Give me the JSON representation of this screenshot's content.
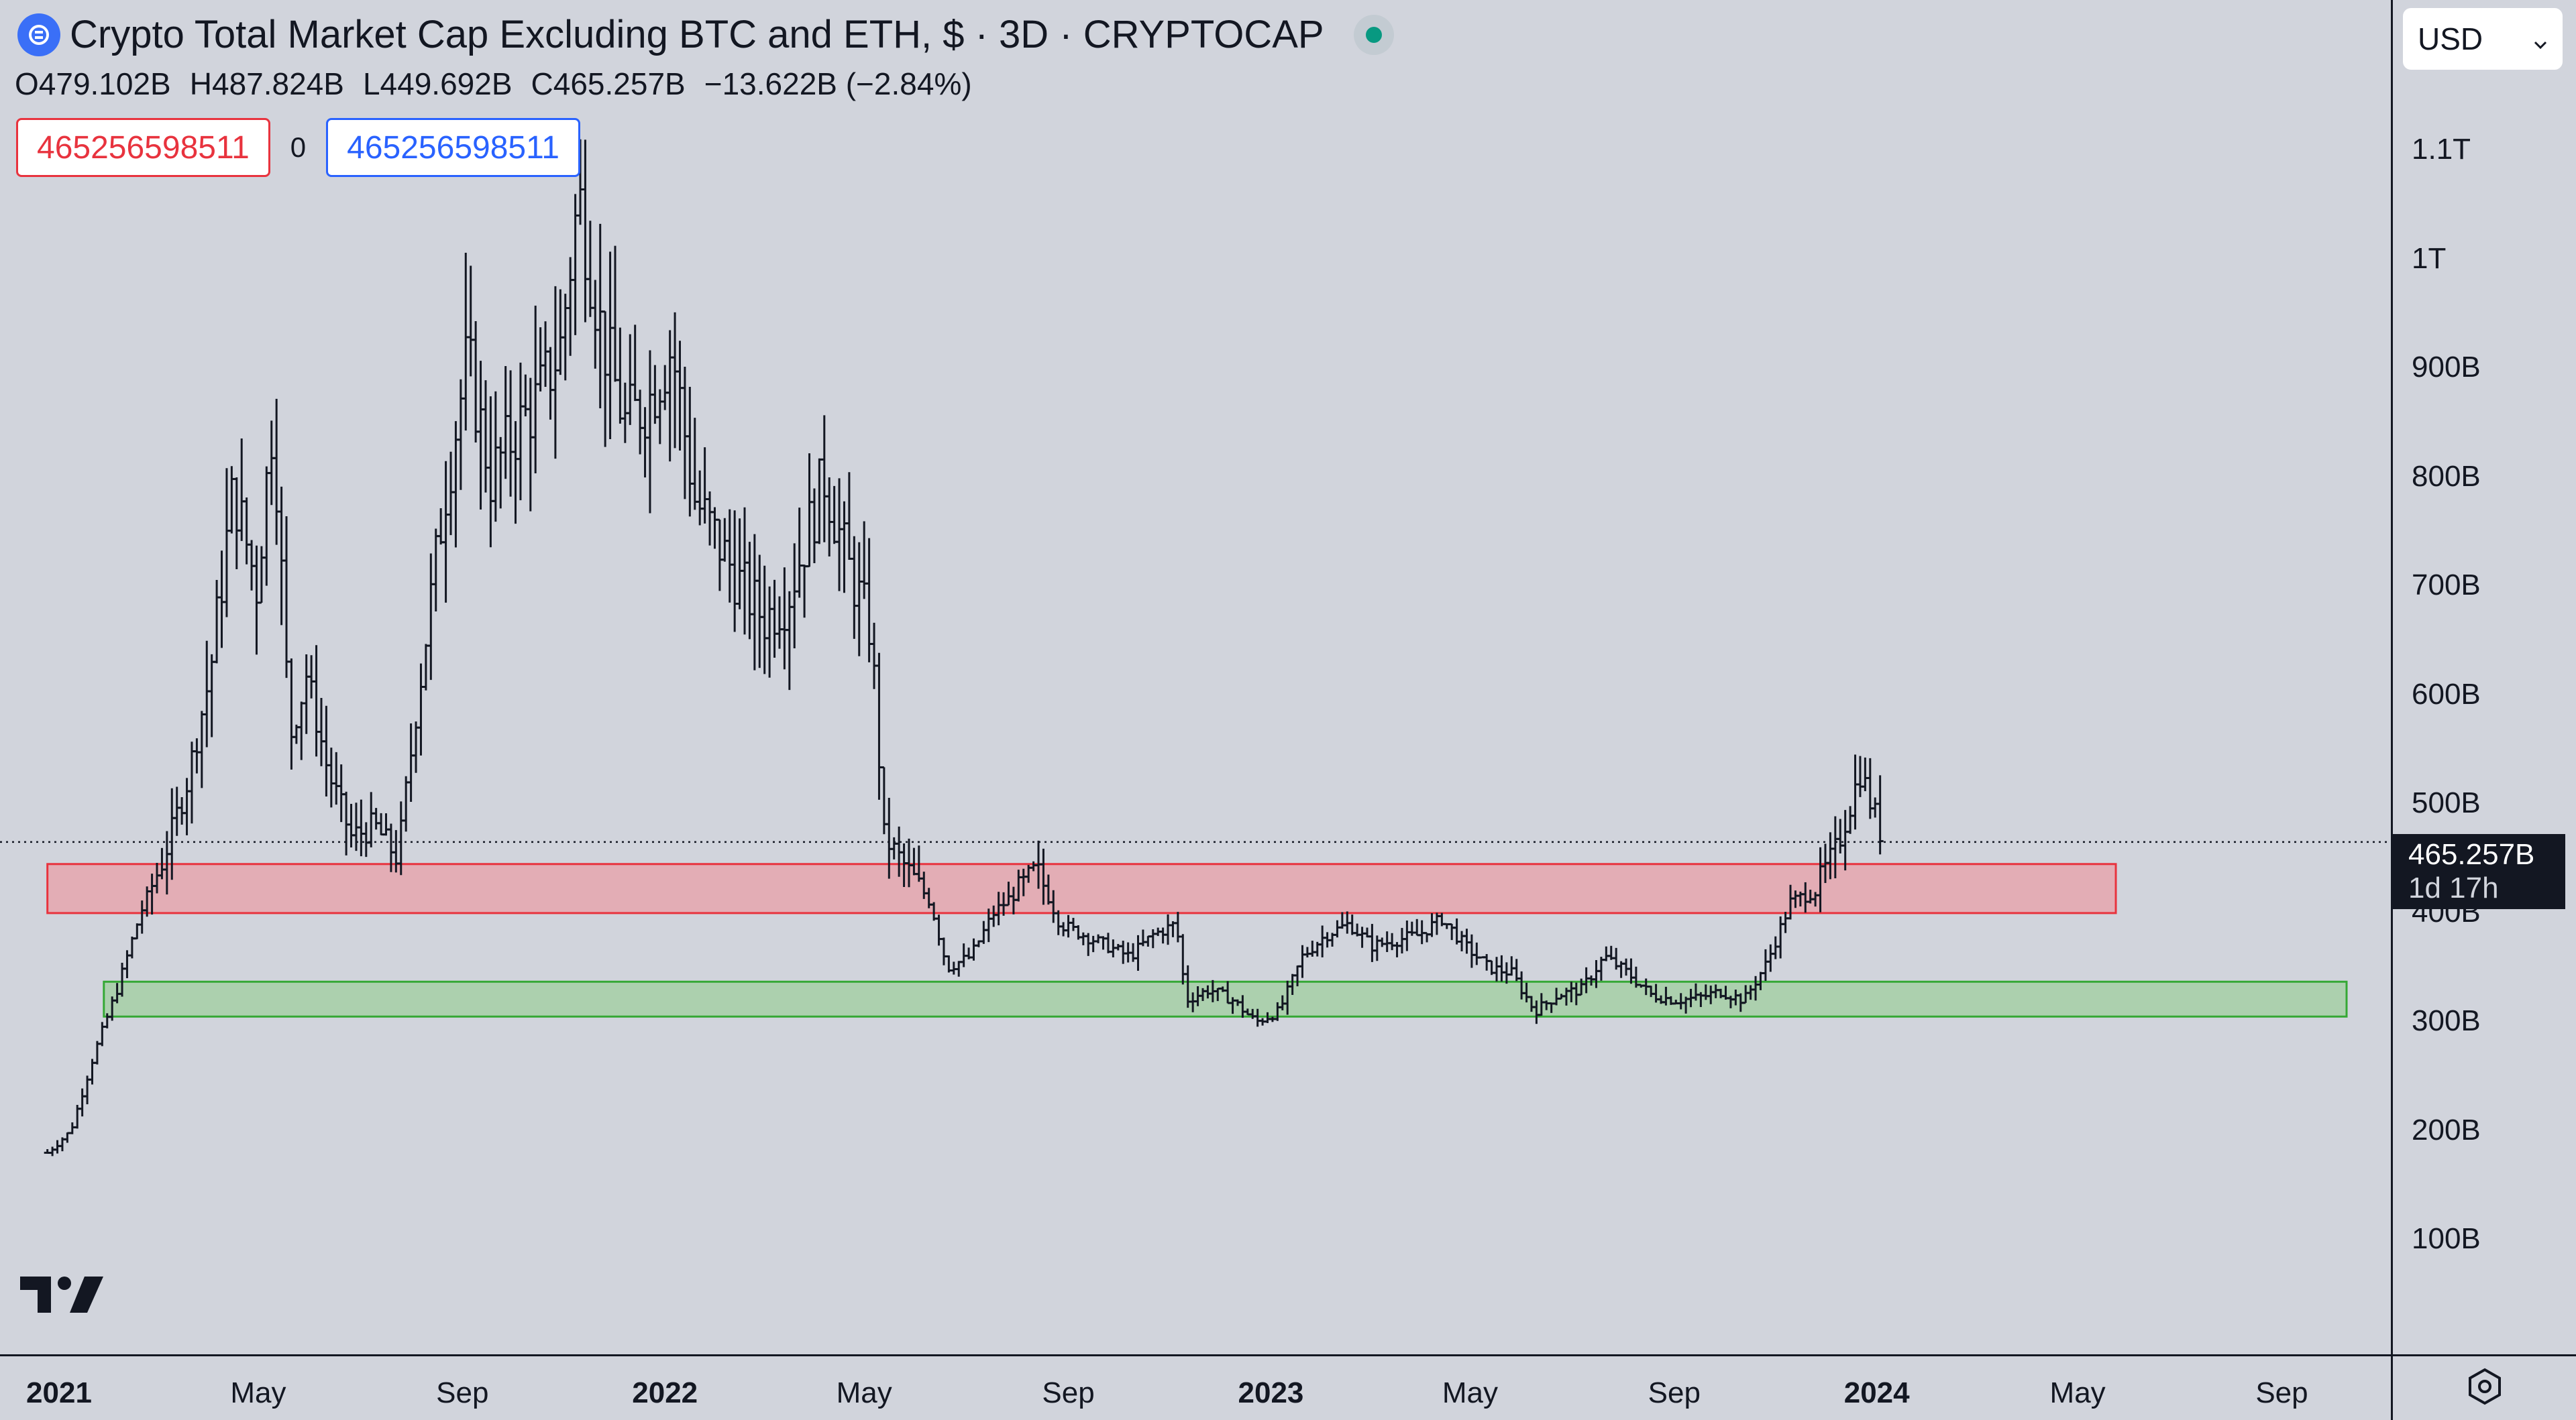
{
  "legend": {
    "title": "Crypto Total Market Cap Excluding BTC and ETH, $ · 3D · CRYPTOCAP",
    "open_label": "O",
    "open": "479.102B",
    "high_label": "H",
    "high": "487.824B",
    "low_label": "L",
    "low": "449.692B",
    "close_label": "C",
    "close": "465.257B",
    "change": "−13.622B (−2.84%)"
  },
  "trade": {
    "sell_value": "465256598511",
    "spread": "0",
    "buy_value": "465256598511"
  },
  "currency": {
    "selected": "USD"
  },
  "last_price": {
    "value": "465.257B",
    "countdown": "1d 17h"
  },
  "colors": {
    "background": "#d1d4dc",
    "bars": "#131722",
    "resistance_zone_fill": "#e8a0a8",
    "resistance_zone_border": "#e8333e",
    "support_zone_fill": "#9fcf9f",
    "support_zone_border": "#35a835",
    "sell": "#e8333e",
    "buy": "#2962ff",
    "live": "#089981"
  },
  "chart_data": {
    "type": "ohlc_bar",
    "timeframe": "3D",
    "y_unit": "USD",
    "ylim": [
      0,
      1250000000000
    ],
    "y_ticks": [
      {
        "value": 100000000000,
        "label": "100B"
      },
      {
        "value": 200000000000,
        "label": "200B"
      },
      {
        "value": 300000000000,
        "label": "300B"
      },
      {
        "value": 400000000000,
        "label": "400B"
      },
      {
        "value": 500000000000,
        "label": "500B"
      },
      {
        "value": 600000000000,
        "label": "600B"
      },
      {
        "value": 700000000000,
        "label": "700B"
      },
      {
        "value": 800000000000,
        "label": "800B"
      },
      {
        "value": 900000000000,
        "label": "900B"
      },
      {
        "value": 1000000000000,
        "label": "1T"
      },
      {
        "value": 1100000000000,
        "label": "1.1T"
      }
    ],
    "x_range": [
      "2021-01-01",
      "2024-10-10"
    ],
    "x_ticks": [
      {
        "date": "2021-01-01",
        "label": "2021",
        "year": true
      },
      {
        "date": "2021-05-01",
        "label": "May",
        "year": false
      },
      {
        "date": "2021-09-01",
        "label": "Sep",
        "year": false
      },
      {
        "date": "2022-01-01",
        "label": "2022",
        "year": true
      },
      {
        "date": "2022-05-01",
        "label": "May",
        "year": false
      },
      {
        "date": "2022-09-01",
        "label": "Sep",
        "year": false
      },
      {
        "date": "2023-01-01",
        "label": "2023",
        "year": true
      },
      {
        "date": "2023-05-01",
        "label": "May",
        "year": false
      },
      {
        "date": "2023-09-01",
        "label": "Sep",
        "year": false
      },
      {
        "date": "2024-01-01",
        "label": "2024",
        "year": true
      },
      {
        "date": "2024-05-01",
        "label": "May",
        "year": false
      },
      {
        "date": "2024-09-01",
        "label": "Sep",
        "year": false
      }
    ],
    "series": [
      {
        "date": "2020-12-25",
        "close": 180000000000
      },
      {
        "date": "2021-01-08",
        "close": 200000000000
      },
      {
        "date": "2021-01-22",
        "close": 270000000000
      },
      {
        "date": "2021-02-05",
        "close": 330000000000
      },
      {
        "date": "2021-02-19",
        "close": 400000000000
      },
      {
        "date": "2021-03-05",
        "close": 450000000000
      },
      {
        "date": "2021-03-19",
        "close": 520000000000
      },
      {
        "date": "2021-04-02",
        "close": 620000000000
      },
      {
        "date": "2021-04-16",
        "close": 790000000000
      },
      {
        "date": "2021-04-30",
        "close": 700000000000
      },
      {
        "date": "2021-05-10",
        "close": 860000000000
      },
      {
        "date": "2021-05-20",
        "close": 560000000000
      },
      {
        "date": "2021-05-30",
        "close": 620000000000
      },
      {
        "date": "2021-06-12",
        "close": 530000000000
      },
      {
        "date": "2021-06-26",
        "close": 470000000000
      },
      {
        "date": "2021-07-10",
        "close": 480000000000
      },
      {
        "date": "2021-07-24",
        "close": 450000000000
      },
      {
        "date": "2021-08-07",
        "close": 620000000000
      },
      {
        "date": "2021-08-21",
        "close": 780000000000
      },
      {
        "date": "2021-09-04",
        "close": 910000000000
      },
      {
        "date": "2021-09-18",
        "close": 800000000000
      },
      {
        "date": "2021-10-02",
        "close": 840000000000
      },
      {
        "date": "2021-10-16",
        "close": 870000000000
      },
      {
        "date": "2021-10-30",
        "close": 920000000000
      },
      {
        "date": "2021-11-10",
        "close": 1060000000000
      },
      {
        "date": "2021-11-24",
        "close": 930000000000
      },
      {
        "date": "2021-12-08",
        "close": 850000000000
      },
      {
        "date": "2021-12-22",
        "close": 870000000000
      },
      {
        "date": "2022-01-05",
        "close": 920000000000
      },
      {
        "date": "2022-01-19",
        "close": 780000000000
      },
      {
        "date": "2022-02-02",
        "close": 740000000000
      },
      {
        "date": "2022-02-16",
        "close": 700000000000
      },
      {
        "date": "2022-03-02",
        "close": 670000000000
      },
      {
        "date": "2022-03-16",
        "close": 690000000000
      },
      {
        "date": "2022-03-30",
        "close": 760000000000
      },
      {
        "date": "2022-04-07",
        "close": 800000000000
      },
      {
        "date": "2022-04-21",
        "close": 720000000000
      },
      {
        "date": "2022-05-05",
        "close": 660000000000
      },
      {
        "date": "2022-05-13",
        "close": 470000000000
      },
      {
        "date": "2022-05-27",
        "close": 440000000000
      },
      {
        "date": "2022-06-10",
        "close": 410000000000
      },
      {
        "date": "2022-06-20",
        "close": 350000000000
      },
      {
        "date": "2022-07-04",
        "close": 360000000000
      },
      {
        "date": "2022-07-18",
        "close": 400000000000
      },
      {
        "date": "2022-08-01",
        "close": 420000000000
      },
      {
        "date": "2022-08-13",
        "close": 440000000000
      },
      {
        "date": "2022-08-27",
        "close": 390000000000
      },
      {
        "date": "2022-09-10",
        "close": 380000000000
      },
      {
        "date": "2022-09-24",
        "close": 370000000000
      },
      {
        "date": "2022-10-08",
        "close": 360000000000
      },
      {
        "date": "2022-10-22",
        "close": 380000000000
      },
      {
        "date": "2022-11-05",
        "close": 390000000000
      },
      {
        "date": "2022-11-11",
        "close": 320000000000
      },
      {
        "date": "2022-11-25",
        "close": 330000000000
      },
      {
        "date": "2022-12-09",
        "close": 320000000000
      },
      {
        "date": "2022-12-23",
        "close": 300000000000
      },
      {
        "date": "2023-01-06",
        "close": 310000000000
      },
      {
        "date": "2023-01-20",
        "close": 360000000000
      },
      {
        "date": "2023-02-03",
        "close": 380000000000
      },
      {
        "date": "2023-02-17",
        "close": 390000000000
      },
      {
        "date": "2023-03-03",
        "close": 370000000000
      },
      {
        "date": "2023-03-17",
        "close": 375000000000
      },
      {
        "date": "2023-03-31",
        "close": 380000000000
      },
      {
        "date": "2023-04-14",
        "close": 395000000000
      },
      {
        "date": "2023-04-28",
        "close": 370000000000
      },
      {
        "date": "2023-05-12",
        "close": 350000000000
      },
      {
        "date": "2023-05-26",
        "close": 345000000000
      },
      {
        "date": "2023-06-09",
        "close": 310000000000
      },
      {
        "date": "2023-06-23",
        "close": 325000000000
      },
      {
        "date": "2023-07-07",
        "close": 330000000000
      },
      {
        "date": "2023-07-21",
        "close": 360000000000
      },
      {
        "date": "2023-08-04",
        "close": 345000000000
      },
      {
        "date": "2023-08-18",
        "close": 325000000000
      },
      {
        "date": "2023-09-01",
        "close": 320000000000
      },
      {
        "date": "2023-09-15",
        "close": 322000000000
      },
      {
        "date": "2023-09-29",
        "close": 328000000000
      },
      {
        "date": "2023-10-13",
        "close": 320000000000
      },
      {
        "date": "2023-10-27",
        "close": 355000000000
      },
      {
        "date": "2023-11-10",
        "close": 410000000000
      },
      {
        "date": "2023-11-24",
        "close": 420000000000
      },
      {
        "date": "2023-12-08",
        "close": 460000000000
      },
      {
        "date": "2023-12-22",
        "close": 530000000000
      },
      {
        "date": "2024-01-02",
        "close": 480000000000
      },
      {
        "date": "2024-01-05",
        "close": 465257000000
      }
    ],
    "zones": [
      {
        "name": "resistance-zone",
        "from": "2020-12-25",
        "to": "2024-05-24",
        "low": 400000000000,
        "high": 445000000000
      },
      {
        "name": "support-zone",
        "from": "2021-01-28",
        "to": "2024-10-10",
        "low": 305000000000,
        "high": 337000000000
      }
    ],
    "last_close": 465257000000
  }
}
